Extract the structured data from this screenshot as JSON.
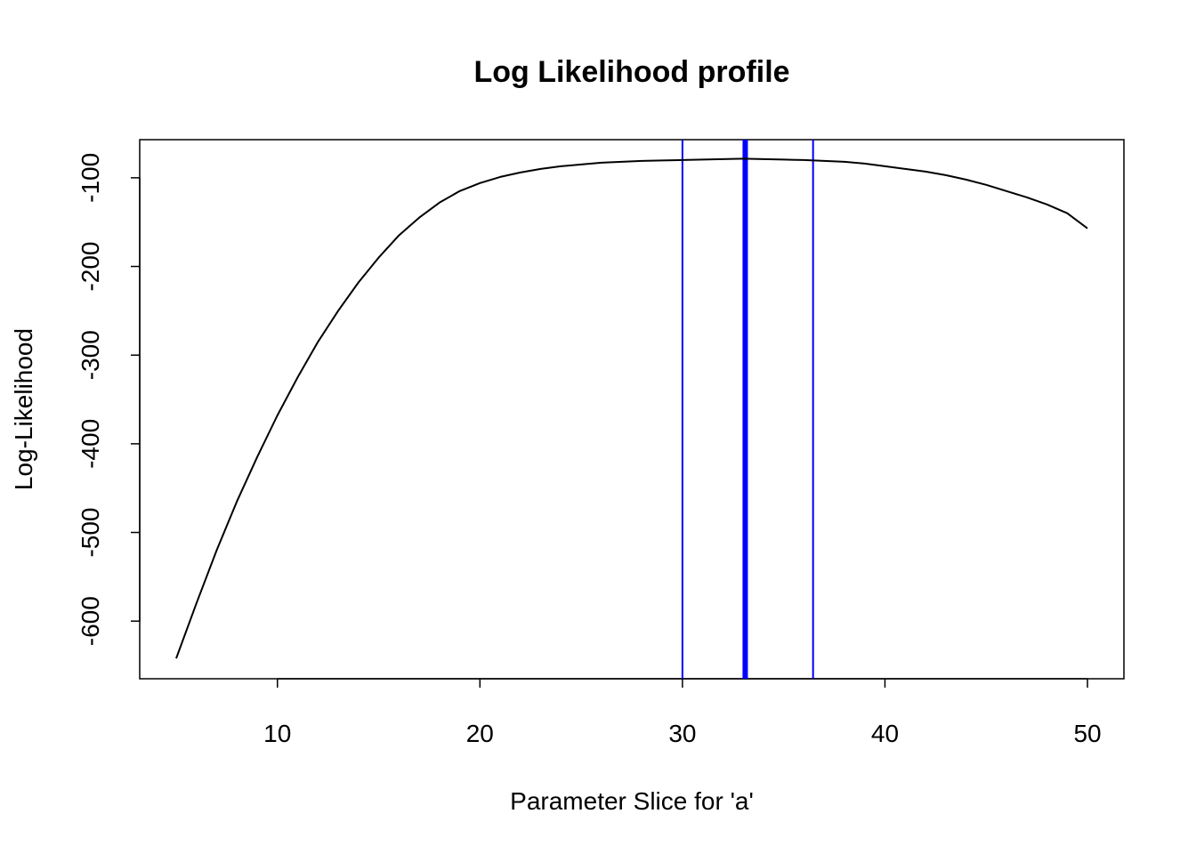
{
  "chart_data": {
    "type": "line",
    "title": "Log Likelihood profile",
    "xlabel": "Parameter Slice for 'a'",
    "ylabel": "Log-Likelihood",
    "xlim": [
      3.2,
      51.8
    ],
    "ylim": [
      -665,
      -57
    ],
    "x_ticks": [
      10,
      20,
      30,
      40,
      50
    ],
    "x_tick_labels": [
      "10",
      "20",
      "30",
      "40",
      "50"
    ],
    "y_ticks": [
      -600,
      -500,
      -400,
      -300,
      -200,
      -100
    ],
    "y_tick_labels": [
      "-600",
      "-500",
      "-400",
      "-300",
      "-200",
      "-100"
    ],
    "grid": false,
    "series": [
      {
        "color": "#000000",
        "x": [
          5,
          6,
          7,
          8,
          9,
          10,
          11,
          12,
          13,
          14,
          15,
          16,
          17,
          18,
          19,
          20,
          21,
          22,
          23,
          24,
          25,
          26,
          27,
          28,
          29,
          30,
          31,
          32,
          33,
          34,
          35,
          36,
          37,
          38,
          39,
          40,
          41,
          42,
          43,
          44,
          45,
          46,
          47,
          48,
          49,
          50
        ],
        "y": [
          -642,
          -580,
          -520,
          -465,
          -415,
          -368,
          -325,
          -285,
          -250,
          -218,
          -190,
          -165,
          -145,
          -128,
          -115,
          -106,
          -99,
          -94,
          -90,
          -87,
          -85,
          -83,
          -82,
          -81,
          -80.5,
          -80,
          -79.5,
          -79,
          -78.5,
          -79,
          -79.5,
          -80,
          -81,
          -82,
          -84,
          -87,
          -90,
          -93,
          -97,
          -102,
          -108,
          -115,
          -122,
          -130,
          -140,
          -157
        ]
      }
    ],
    "vlines": [
      {
        "x": 30.0,
        "color": "#0000ff",
        "weight": "thin"
      },
      {
        "x": 33.1,
        "color": "#0000ff",
        "weight": "thick"
      },
      {
        "x": 36.45,
        "color": "#0000ff",
        "weight": "thin"
      }
    ]
  }
}
